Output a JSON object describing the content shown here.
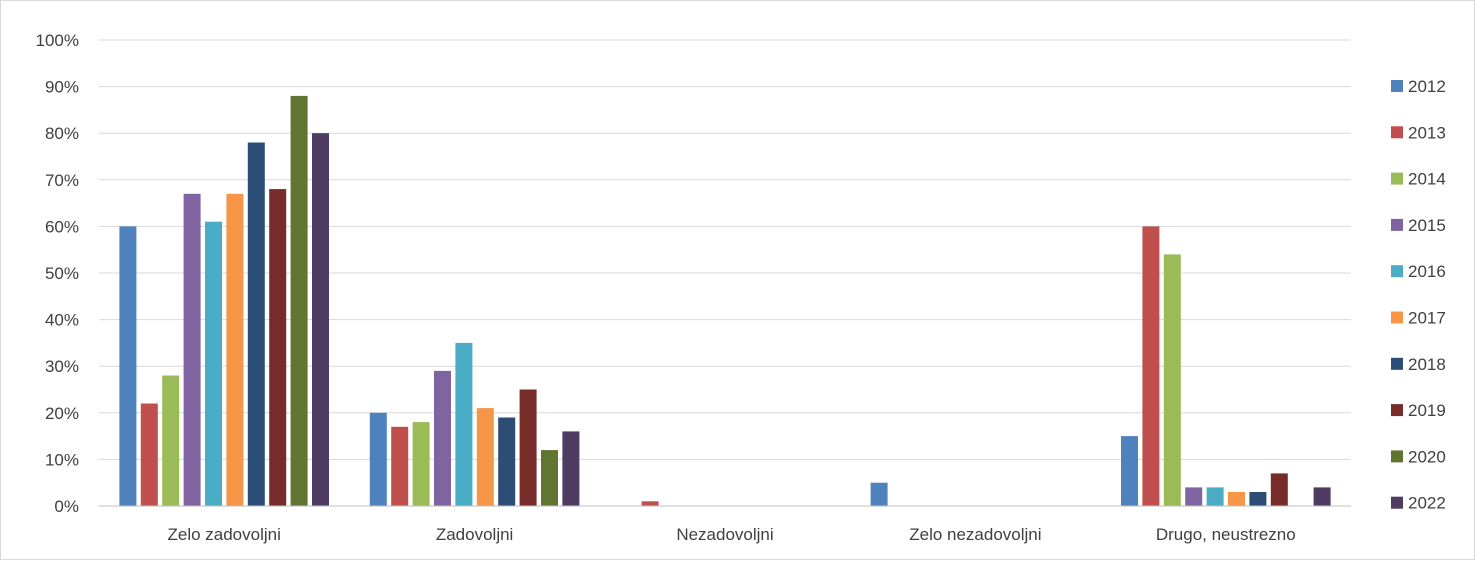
{
  "chart_data": {
    "type": "bar",
    "categories": [
      "Zelo zadovoljni",
      "Zadovoljni",
      "Nezadovoljni",
      "Zelo nezadovoljni",
      "Drugo, neustrezno"
    ],
    "series": [
      {
        "name": "2012",
        "color": "#4f81bd",
        "values": [
          60,
          20,
          0,
          5,
          15
        ]
      },
      {
        "name": "2013",
        "color": "#c0504d",
        "values": [
          22,
          17,
          1,
          0,
          60
        ]
      },
      {
        "name": "2014",
        "color": "#9bbb59",
        "values": [
          28,
          18,
          0,
          0,
          54
        ]
      },
      {
        "name": "2015",
        "color": "#8064a2",
        "values": [
          67,
          29,
          0,
          0,
          4
        ]
      },
      {
        "name": "2016",
        "color": "#4bacc6",
        "values": [
          61,
          35,
          0,
          0,
          4
        ]
      },
      {
        "name": "2017",
        "color": "#f79646",
        "values": [
          67,
          21,
          0,
          0,
          3
        ]
      },
      {
        "name": "2018",
        "color": "#2c4d75",
        "values": [
          78,
          19,
          0,
          0,
          3
        ]
      },
      {
        "name": "2019",
        "color": "#772c2a",
        "values": [
          68,
          25,
          0,
          0,
          7
        ]
      },
      {
        "name": "2020",
        "color": "#5f7530",
        "values": [
          88,
          12,
          0,
          0,
          0
        ]
      },
      {
        "name": "2022",
        "color": "#4d3b62",
        "values": [
          80,
          16,
          0,
          0,
          4
        ]
      }
    ],
    "yticks": [
      "0%",
      "10%",
      "20%",
      "30%",
      "40%",
      "50%",
      "60%",
      "70%",
      "80%",
      "90%",
      "100%"
    ],
    "ylim": [
      0,
      100
    ],
    "grid": true,
    "legend": "right",
    "title": "",
    "xlabel": "",
    "ylabel": ""
  }
}
